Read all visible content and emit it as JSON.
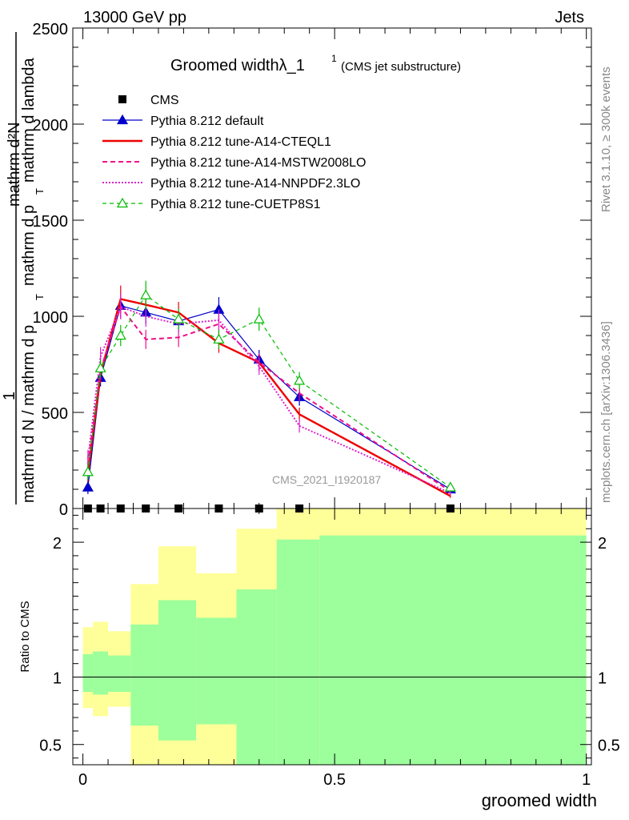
{
  "header": {
    "left": "13000 GeV pp",
    "right": "Jets"
  },
  "side_labels": {
    "rivet": "Rivet 3.1.10, ≥ 300k events",
    "mcplots": "mcplots.cern.ch [arXiv:1306.3436]"
  },
  "chart_data": [
    {
      "type": "line",
      "panel": "main",
      "title": "Groomed widthλ_1",
      "title_sup": "1",
      "subtitle": "(CMS jet substructure)",
      "ylabel_numer": "mathrm d²N",
      "ylabel_numer_one": "1",
      "ylabel_denom": "mathrm d N / mathrm d p_T mathrm d p_T mathrm d lambda",
      "ylabel_parts": {
        "one": "1",
        "numer": "mathrm d²N",
        "denom_a": "mathrm d N / mathrm d p",
        "denom_b": "mathrm d p",
        "denom_c": "mathrm d lambda",
        "sub_t": "T"
      },
      "watermark": "CMS_2021_I1920187",
      "xlim": [
        -0.02,
        1.01
      ],
      "ylim": [
        0,
        2500
      ],
      "yticks": [
        0,
        500,
        1000,
        1500,
        2000,
        2500
      ],
      "ytick_labels": [
        "0",
        "500",
        "1000",
        "1500",
        "2000",
        "2500"
      ],
      "cms_points": [
        {
          "x": 0.01,
          "y": 0
        },
        {
          "x": 0.035,
          "y": 0
        },
        {
          "x": 0.075,
          "y": 0
        },
        {
          "x": 0.125,
          "y": 0
        },
        {
          "x": 0.19,
          "y": 0
        },
        {
          "x": 0.27,
          "y": 0
        },
        {
          "x": 0.35,
          "y": 0
        },
        {
          "x": 0.43,
          "y": 0
        },
        {
          "x": 0.73,
          "y": 0
        }
      ],
      "x": [
        0.01,
        0.035,
        0.075,
        0.125,
        0.19,
        0.27,
        0.35,
        0.43,
        0.73
      ],
      "series": [
        {
          "name": "CMS",
          "style": "marker-square",
          "color": "#000000",
          "values": [
            0,
            0,
            0,
            0,
            0,
            0,
            0,
            0,
            0
          ]
        },
        {
          "name": "Pythia 8.212 default",
          "style": "solid-triangle",
          "color": "#0000cc",
          "values": [
            110,
            680,
            1055,
            1020,
            975,
            1035,
            775,
            580,
            100
          ],
          "errors": [
            35,
            45,
            60,
            60,
            55,
            65,
            50,
            45,
            15
          ]
        },
        {
          "name": "Pythia 8.212 tune-A14-CTEQL1",
          "style": "solid-thick",
          "color": "#ee0000",
          "values": [
            180,
            700,
            1090,
            1060,
            1020,
            860,
            760,
            490,
            65
          ],
          "errors": [
            40,
            45,
            70,
            60,
            55,
            50,
            45,
            35,
            10
          ]
        },
        {
          "name": "Pythia 8.212 tune-A14-MSTW2008LO",
          "style": "dashed",
          "color": "#ee1188",
          "values": [
            230,
            720,
            1050,
            880,
            890,
            960,
            760,
            600,
            90
          ],
          "errors": [
            45,
            50,
            65,
            50,
            50,
            55,
            45,
            40,
            12
          ]
        },
        {
          "name": "Pythia 8.212 tune-A14-NNPDF2.3LO",
          "style": "dotted",
          "color": "#dd22cc",
          "values": [
            260,
            790,
            1050,
            1000,
            960,
            980,
            740,
            430,
            80
          ],
          "errors": [
            45,
            50,
            65,
            55,
            50,
            55,
            45,
            35,
            12
          ]
        },
        {
          "name": "Pythia 8.212 tune-CUETP8S1",
          "style": "dashed-open-triangle",
          "color": "#00bb00",
          "values": [
            190,
            730,
            900,
            1110,
            985,
            880,
            985,
            665,
            110
          ],
          "errors": [
            40,
            45,
            55,
            75,
            55,
            50,
            60,
            45,
            15
          ]
        }
      ]
    },
    {
      "type": "area",
      "panel": "ratio",
      "ylabel": "Ratio to CMS",
      "xlabel": "groomed width",
      "xlim": [
        -0.02,
        1.01
      ],
      "ylim": [
        0.35,
        2.25
      ],
      "yticks": [
        0.5,
        1,
        2
      ],
      "ytick_labels_left": [
        "0.5",
        "1",
        "2"
      ],
      "ytick_labels_right": [
        "0.5",
        "1",
        "2"
      ],
      "xticks": [
        0,
        0.5,
        1
      ],
      "xtick_labels": [
        "0",
        "0.5",
        "1"
      ],
      "bins": [
        {
          "x0": 0.0,
          "x1": 0.02,
          "green_lo": 0.89,
          "green_hi": 1.17,
          "yellow_lo": 0.77,
          "yellow_hi": 1.37
        },
        {
          "x0": 0.02,
          "x1": 0.05,
          "green_lo": 0.87,
          "green_hi": 1.19,
          "yellow_lo": 0.71,
          "yellow_hi": 1.41
        },
        {
          "x0": 0.05,
          "x1": 0.095,
          "green_lo": 0.89,
          "green_hi": 1.16,
          "yellow_lo": 0.78,
          "yellow_hi": 1.34
        },
        {
          "x0": 0.095,
          "x1": 0.15,
          "green_lo": 0.64,
          "green_hi": 1.39,
          "yellow_lo": 0.35,
          "yellow_hi": 1.69
        },
        {
          "x0": 0.15,
          "x1": 0.225,
          "green_lo": 0.53,
          "green_hi": 1.57,
          "yellow_lo": 0.35,
          "yellow_hi": 1.97
        },
        {
          "x0": 0.225,
          "x1": 0.305,
          "green_lo": 0.65,
          "green_hi": 1.44,
          "yellow_lo": 0.35,
          "yellow_hi": 1.77
        },
        {
          "x0": 0.305,
          "x1": 0.385,
          "green_lo": 0.35,
          "green_hi": 1.65,
          "yellow_lo": 0.35,
          "yellow_hi": 2.1
        },
        {
          "x0": 0.385,
          "x1": 0.47,
          "green_lo": 0.35,
          "green_hi": 2.02,
          "yellow_lo": 0.35,
          "yellow_hi": 2.25
        },
        {
          "x0": 0.47,
          "x1": 1.0,
          "green_lo": 0.35,
          "green_hi": 2.05,
          "yellow_lo": 0.35,
          "yellow_hi": 2.25
        }
      ],
      "reference_line": 1,
      "colors": {
        "green": "#9cff9c",
        "yellow": "#ffff99"
      }
    }
  ]
}
